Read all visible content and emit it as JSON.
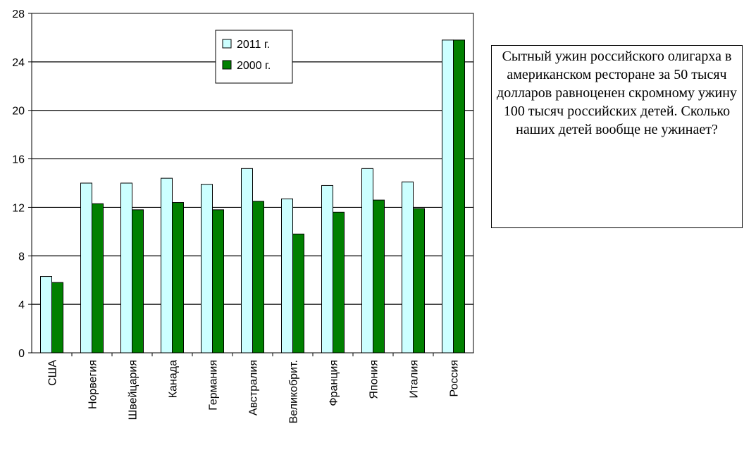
{
  "chart_data": {
    "type": "bar",
    "categories": [
      "США",
      "Норвегия",
      "Швейцария",
      "Канада",
      "Германия",
      "Австралия",
      "Великобрит.",
      "Франция",
      "Япония",
      "Италия",
      "Россия"
    ],
    "series": [
      {
        "name": "2011 г.",
        "color": "#ccffff",
        "values": [
          6.3,
          14.0,
          14.0,
          14.4,
          13.9,
          15.2,
          12.7,
          13.8,
          15.2,
          14.1,
          25.8
        ]
      },
      {
        "name": "2000 г.",
        "color": "#008000",
        "values": [
          5.8,
          12.3,
          11.8,
          12.4,
          11.8,
          12.5,
          9.8,
          11.6,
          12.6,
          11.9,
          25.8
        ]
      }
    ],
    "yticks": [
      0,
      4,
      8,
      12,
      16,
      20,
      24,
      28
    ],
    "ylim": [
      0,
      28
    ],
    "grid": true,
    "legend": "top-center",
    "title": "",
    "xlabel": "",
    "ylabel": ""
  },
  "note": {
    "text": "Сытный ужин российского олигарха в американском ресторане за 50 тысяч долларов равноценен скромному ужину 100 тысяч российских детей. Сколько наших детей вообще не ужинает?"
  }
}
